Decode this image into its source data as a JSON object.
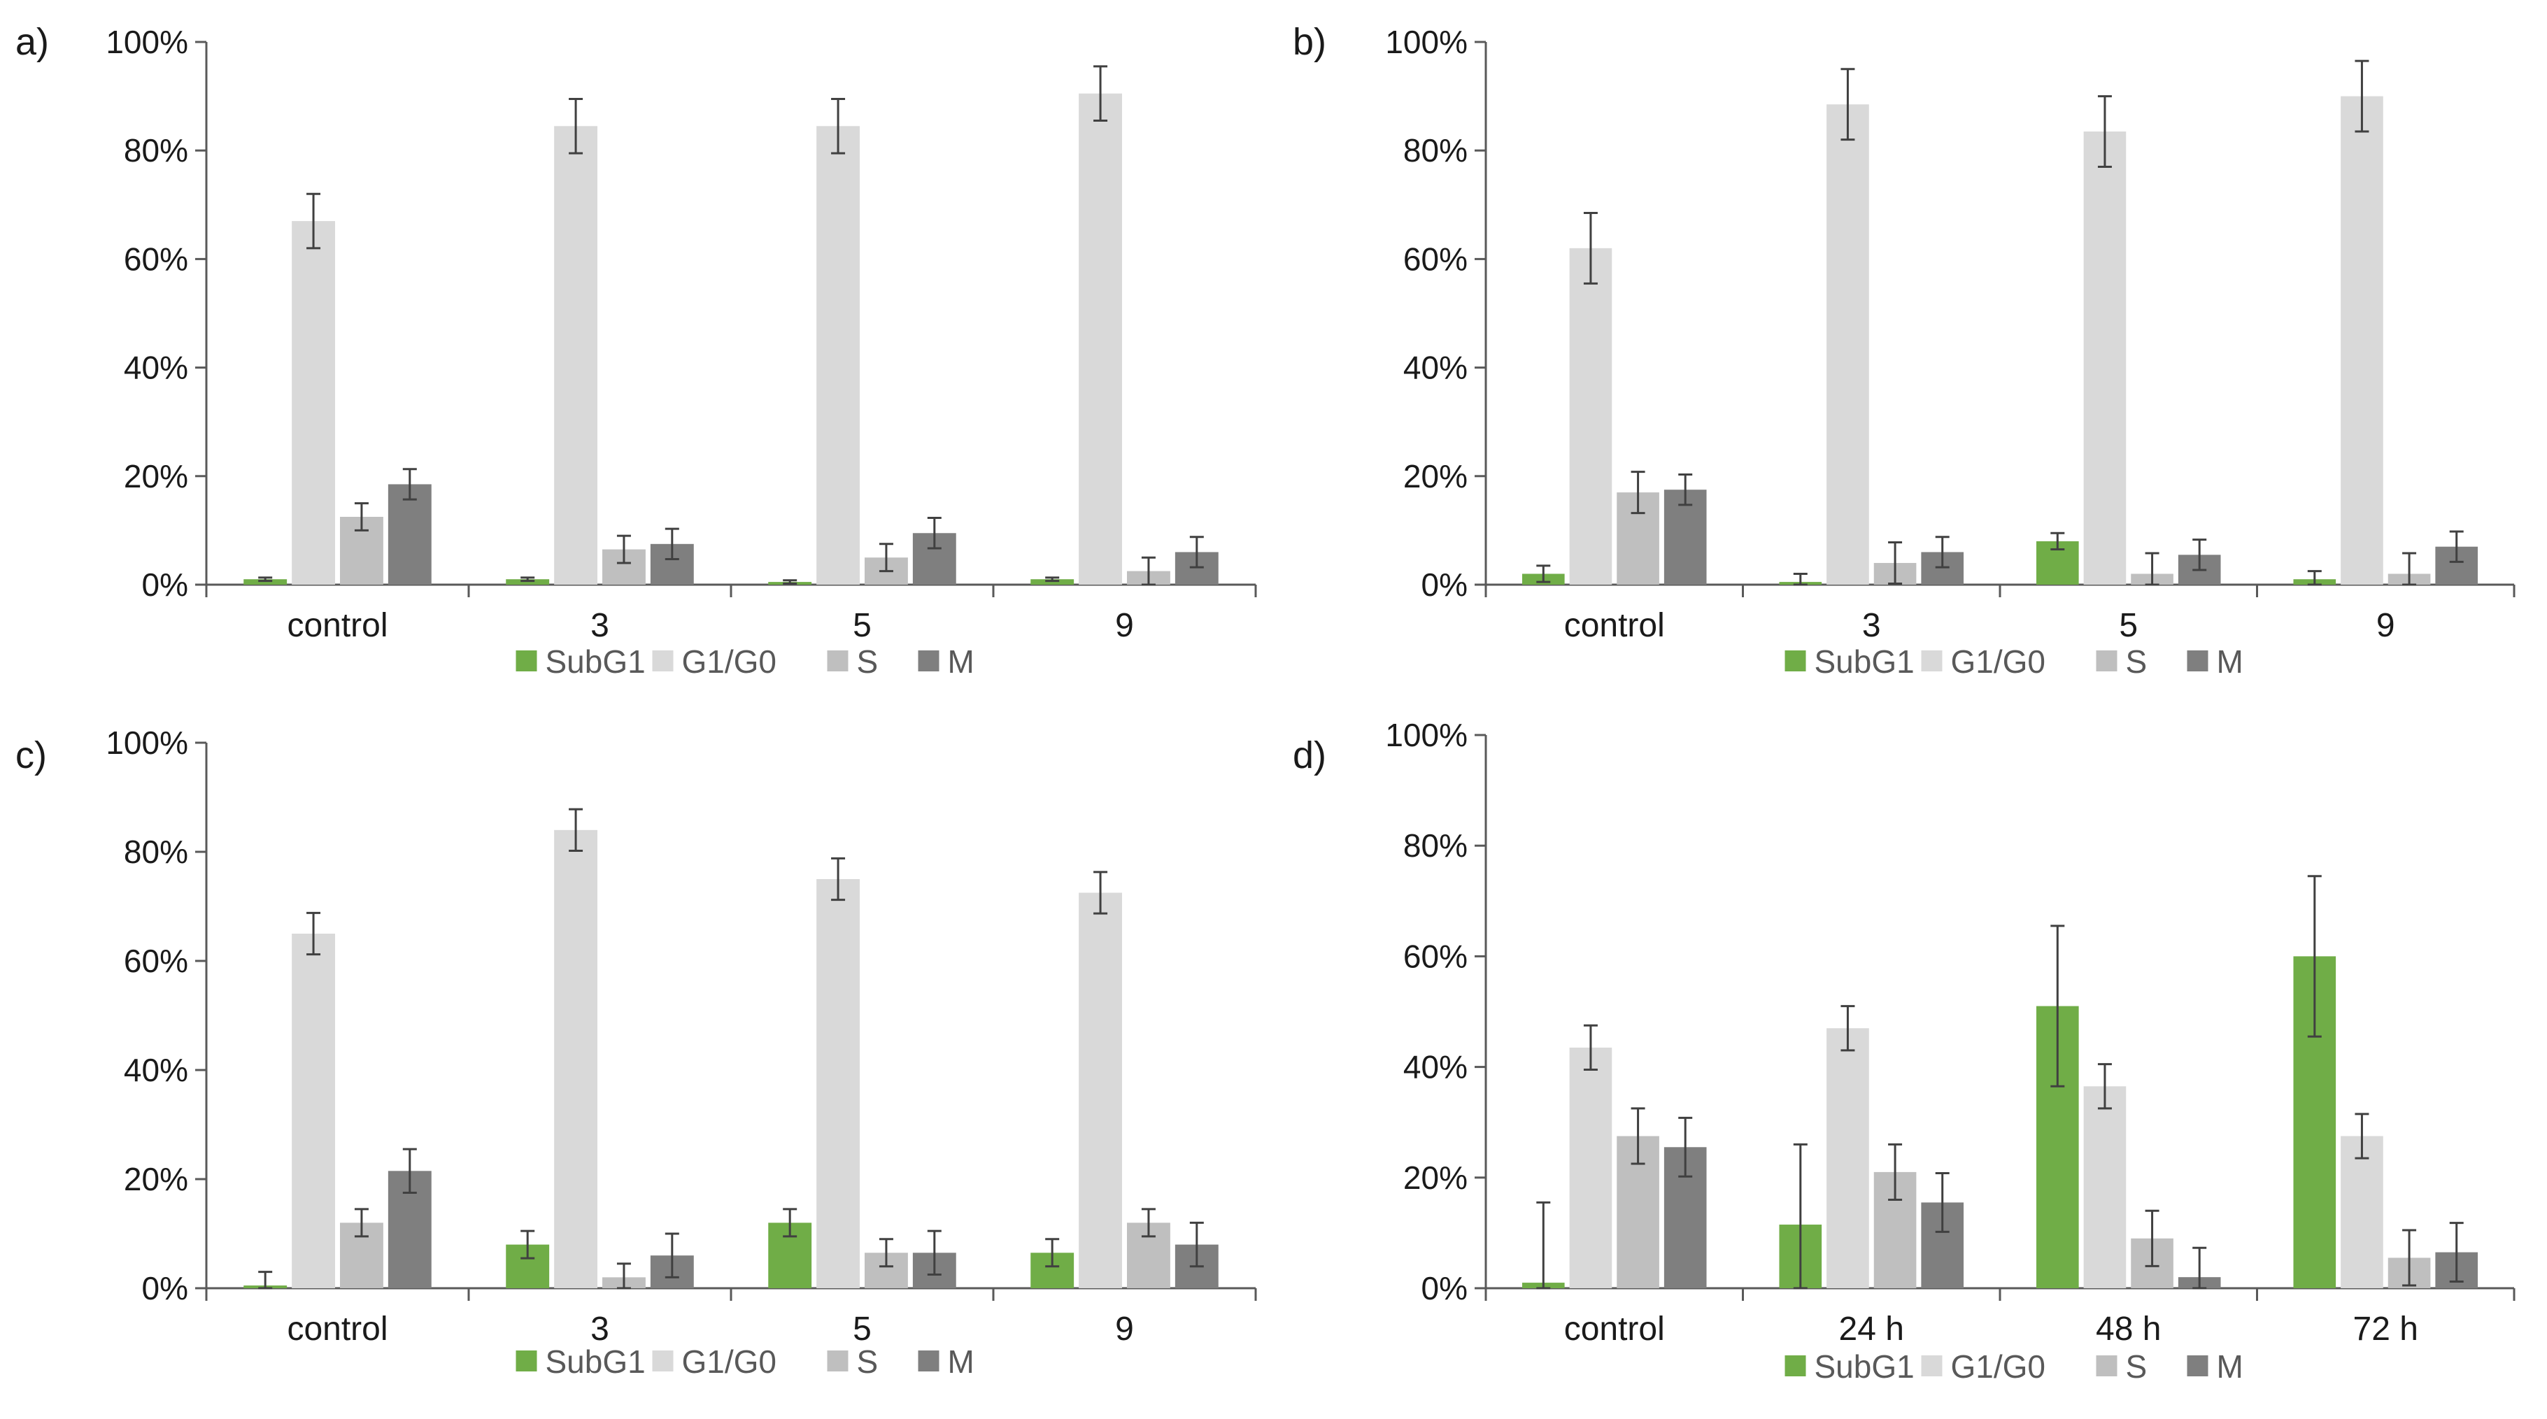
{
  "chart_data": [
    {
      "type": "bar",
      "panel_label": "a)",
      "categories": [
        "control",
        "3",
        "5",
        "9"
      ],
      "yticks": [
        "0%",
        "20%",
        "40%",
        "60%",
        "80%",
        "100%"
      ],
      "ylim": [
        0,
        100
      ],
      "legend_position": "bottom",
      "series": [
        {
          "name": "SubG1",
          "color": "#70ad47",
          "values": [
            1,
            1,
            0.5,
            1
          ],
          "errors": [
            0.3,
            0.3,
            0.3,
            0.3
          ]
        },
        {
          "name": "G1/G0",
          "color": "#d9d9d9",
          "values": [
            67,
            84.5,
            84.5,
            90.5
          ],
          "errors": [
            5,
            5,
            5,
            5
          ]
        },
        {
          "name": "S",
          "color": "#bfbfbf",
          "values": [
            12.5,
            6.5,
            5,
            2.5
          ],
          "errors": [
            2.5,
            2.5,
            2.5,
            2.5
          ]
        },
        {
          "name": "M",
          "color": "#7f7f7f",
          "values": [
            18.5,
            7.5,
            9.5,
            6
          ],
          "errors": [
            2.8,
            2.8,
            2.8,
            2.8
          ]
        }
      ]
    },
    {
      "type": "bar",
      "panel_label": "b)",
      "categories": [
        "control",
        "3",
        "5",
        "9"
      ],
      "yticks": [
        "0%",
        "20%",
        "40%",
        "60%",
        "80%",
        "100%"
      ],
      "ylim": [
        0,
        100
      ],
      "legend_position": "bottom",
      "series": [
        {
          "name": "SubG1",
          "color": "#70ad47",
          "values": [
            2,
            0.5,
            8,
            1
          ],
          "errors": [
            1.5,
            1.5,
            1.5,
            1.5
          ]
        },
        {
          "name": "G1/G0",
          "color": "#d9d9d9",
          "values": [
            62,
            88.5,
            83.5,
            90
          ],
          "errors": [
            6.5,
            6.5,
            6.5,
            6.5
          ]
        },
        {
          "name": "S",
          "color": "#bfbfbf",
          "values": [
            17,
            4,
            2,
            2
          ],
          "errors": [
            3.8,
            3.8,
            3.8,
            3.8
          ]
        },
        {
          "name": "M",
          "color": "#7f7f7f",
          "values": [
            17.5,
            6,
            5.5,
            7
          ],
          "errors": [
            2.8,
            2.8,
            2.8,
            2.8
          ]
        }
      ]
    },
    {
      "type": "bar",
      "panel_label": "c)",
      "categories": [
        "control",
        "3",
        "5",
        "9"
      ],
      "yticks": [
        "0%",
        "20%",
        "40%",
        "60%",
        "80%",
        "100%"
      ],
      "ylim": [
        0,
        100
      ],
      "legend_position": "bottom",
      "series": [
        {
          "name": "SubG1",
          "color": "#70ad47",
          "values": [
            0.5,
            8,
            12,
            6.5
          ],
          "errors": [
            2.5,
            2.5,
            2.5,
            2.5
          ]
        },
        {
          "name": "G1/G0",
          "color": "#d9d9d9",
          "values": [
            65,
            84,
            75,
            72.5
          ],
          "errors": [
            3.8,
            3.8,
            3.8,
            3.8
          ]
        },
        {
          "name": "S",
          "color": "#bfbfbf",
          "values": [
            12,
            2,
            6.5,
            12
          ],
          "errors": [
            2.5,
            2.5,
            2.5,
            2.5
          ]
        },
        {
          "name": "M",
          "color": "#7f7f7f",
          "values": [
            21.5,
            6,
            6.5,
            8
          ],
          "errors": [
            4,
            4,
            4,
            4
          ]
        }
      ]
    },
    {
      "type": "bar",
      "panel_label": "d)",
      "categories": [
        "control",
        "24 h",
        "48 h",
        "72 h"
      ],
      "yticks": [
        "0%",
        "20%",
        "40%",
        "60%",
        "80%",
        "100%"
      ],
      "ylim": [
        0,
        100
      ],
      "legend_position": "bottom",
      "series": [
        {
          "name": "SubG1",
          "color": "#70ad47",
          "values": [
            1,
            11.5,
            51,
            60
          ],
          "errors": [
            14.5,
            14.5,
            14.5,
            14.5
          ]
        },
        {
          "name": "G1/G0",
          "color": "#d9d9d9",
          "values": [
            43.5,
            47,
            36.5,
            27.5
          ],
          "errors": [
            4,
            4,
            4,
            4
          ]
        },
        {
          "name": "S",
          "color": "#bfbfbf",
          "values": [
            27.5,
            21,
            9,
            5.5
          ],
          "errors": [
            5,
            5,
            5,
            5
          ]
        },
        {
          "name": "M",
          "color": "#7f7f7f",
          "values": [
            25.5,
            15.5,
            2,
            6.5
          ],
          "errors": [
            5.3,
            5.3,
            5.3,
            5.3
          ]
        }
      ]
    }
  ]
}
